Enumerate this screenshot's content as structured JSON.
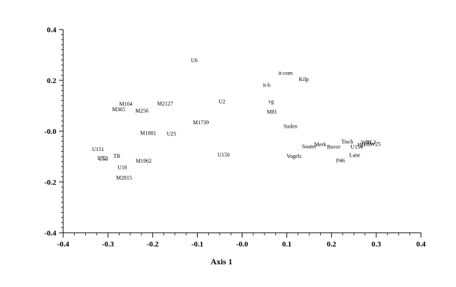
{
  "chart_data": {
    "type": "scatter",
    "title": "",
    "xlabel": "Axis 1",
    "ylabel": "",
    "xlim": [
      -0.4,
      0.4
    ],
    "ylim": [
      -0.4,
      0.4
    ],
    "x_ticks": [
      -0.4,
      -0.3,
      -0.2,
      -0.1,
      0.0,
      0.1,
      0.2,
      0.3,
      0.4
    ],
    "y_ticks": [
      0.4,
      0.2,
      0.0,
      -0.2,
      -0.4
    ],
    "x_tick_labels": [
      "-0.4",
      "-0.3",
      "-0.2",
      "-0.1",
      "-0.0",
      "0.1",
      "0.2",
      "0.3",
      "0.4"
    ],
    "y_tick_labels": [
      "0.4",
      "0.2",
      "-0.0",
      "-0.2",
      "-0.4"
    ],
    "grid": false,
    "legend": "none",
    "marker": "label-only",
    "points": [
      {
        "label": "U6",
        "x": -0.107,
        "y": 0.28
      },
      {
        "label": "it-com",
        "x": 0.097,
        "y": 0.23
      },
      {
        "label": "Kilp",
        "x": 0.138,
        "y": 0.205
      },
      {
        "label": "it-b",
        "x": 0.055,
        "y": 0.182
      },
      {
        "label": "U2",
        "x": -0.045,
        "y": 0.118
      },
      {
        "label": "vg",
        "x": 0.065,
        "y": 0.117
      },
      {
        "label": "M2127",
        "x": -0.172,
        "y": 0.11
      },
      {
        "label": "M104",
        "x": -0.26,
        "y": 0.108
      },
      {
        "label": "M365",
        "x": -0.276,
        "y": 0.086
      },
      {
        "label": "M256",
        "x": -0.224,
        "y": 0.081
      },
      {
        "label": "M81",
        "x": 0.067,
        "y": 0.077
      },
      {
        "label": "M1739",
        "x": -0.092,
        "y": 0.035
      },
      {
        "label": "Soden",
        "x": 0.108,
        "y": 0.02
      },
      {
        "label": "M1881",
        "x": -0.21,
        "y": -0.007
      },
      {
        "label": "U25",
        "x": -0.158,
        "y": -0.009
      },
      {
        "label": "Tisch",
        "x": 0.235,
        "y": -0.041
      },
      {
        "label": "W3",
        "x": 0.275,
        "y": -0.043
      },
      {
        "label": "VL2",
        "x": 0.288,
        "y": -0.043
      },
      {
        "label": "Merk",
        "x": 0.175,
        "y": -0.051
      },
      {
        "label": "Souter",
        "x": 0.15,
        "y": -0.06
      },
      {
        "label": "Bover",
        "x": 0.205,
        "y": -0.061
      },
      {
        "label": "HH",
        "x": 0.267,
        "y": -0.053
      },
      {
        "label": "Ad",
        "x": 0.28,
        "y": -0.05
      },
      {
        "label": "W25",
        "x": 0.298,
        "y": -0.05
      },
      {
        "label": "U154",
        "x": 0.256,
        "y": -0.061
      },
      {
        "label": "U151",
        "x": -0.322,
        "y": -0.07
      },
      {
        "label": "Lane",
        "x": 0.252,
        "y": -0.093
      },
      {
        "label": "TR",
        "x": -0.28,
        "y": -0.097
      },
      {
        "label": "Vogels",
        "x": 0.116,
        "y": -0.097
      },
      {
        "label": "U150",
        "x": -0.041,
        "y": -0.092
      },
      {
        "label": "U52",
        "x": -0.313,
        "y": -0.106
      },
      {
        "label": "U53",
        "x": -0.31,
        "y": -0.108
      },
      {
        "label": "M1962",
        "x": -0.22,
        "y": -0.116
      },
      {
        "label": "P46",
        "x": 0.22,
        "y": -0.115
      },
      {
        "label": "U18",
        "x": -0.268,
        "y": -0.142
      },
      {
        "label": "M2815",
        "x": -0.264,
        "y": -0.182
      }
    ]
  }
}
